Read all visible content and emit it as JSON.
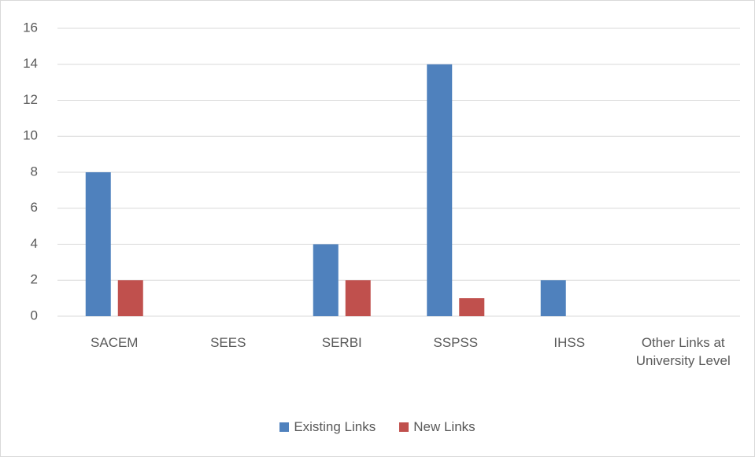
{
  "chart_data": {
    "type": "bar",
    "categories": [
      "SACEM",
      "SEES",
      "SERBI",
      "SSPSS",
      "IHSS",
      "Other Links at University Level"
    ],
    "series": [
      {
        "name": "Existing Links",
        "color": "#4f81bd",
        "values": [
          8,
          0,
          4,
          14,
          2,
          0
        ]
      },
      {
        "name": "New Links",
        "color": "#c0504d",
        "values": [
          2,
          0,
          2,
          1,
          0,
          0
        ]
      }
    ],
    "ylim": [
      0,
      16
    ],
    "yticks": [
      0,
      2,
      4,
      6,
      8,
      10,
      12,
      14,
      16
    ],
    "grid": true,
    "legend": "bottom"
  }
}
